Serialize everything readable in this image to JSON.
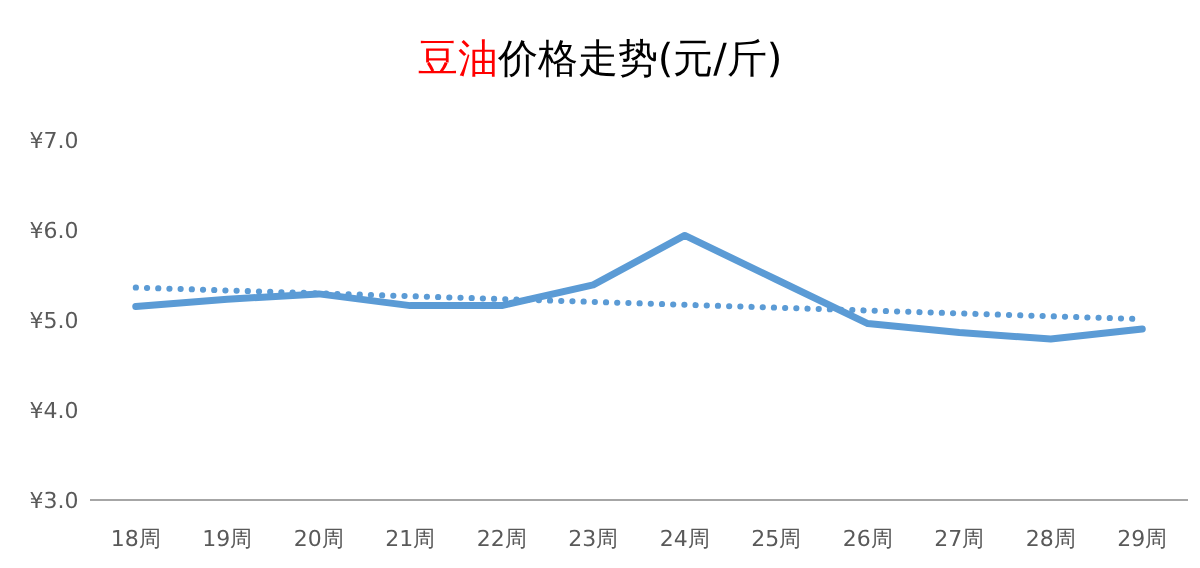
{
  "chart_data": {
    "type": "line",
    "title": "豆油价格走势(元/斤)",
    "categories": [
      "18周",
      "19周",
      "20周",
      "21周",
      "22周",
      "23周",
      "24周",
      "25周",
      "26周",
      "27周",
      "28周",
      "29周"
    ],
    "series": [
      {
        "color": "#5b9bd5",
        "values": [
          5.15,
          5.23,
          5.29,
          5.16,
          5.16,
          5.39,
          5.94,
          5.45,
          4.96,
          4.86,
          4.79,
          4.9
        ],
        "line_style": "solid"
      },
      {
        "type": "line",
        "color": "#5b9bd5",
        "x": [
          "18周",
          "29周"
        ],
        "values": [
          5.36,
          5.01
        ],
        "line_style": "dotted"
      }
    ],
    "ylim": [
      3,
      7
    ],
    "yticks": [
      {
        "value": 3,
        "label": "¥3.0"
      },
      {
        "value": 4,
        "label": "¥4.0"
      },
      {
        "value": 5,
        "label": "¥5.0"
      },
      {
        "value": 6,
        "label": "¥6.0"
      },
      {
        "value": 7,
        "label": "¥7.0"
      }
    ],
    "grid": false,
    "marker": "none"
  }
}
